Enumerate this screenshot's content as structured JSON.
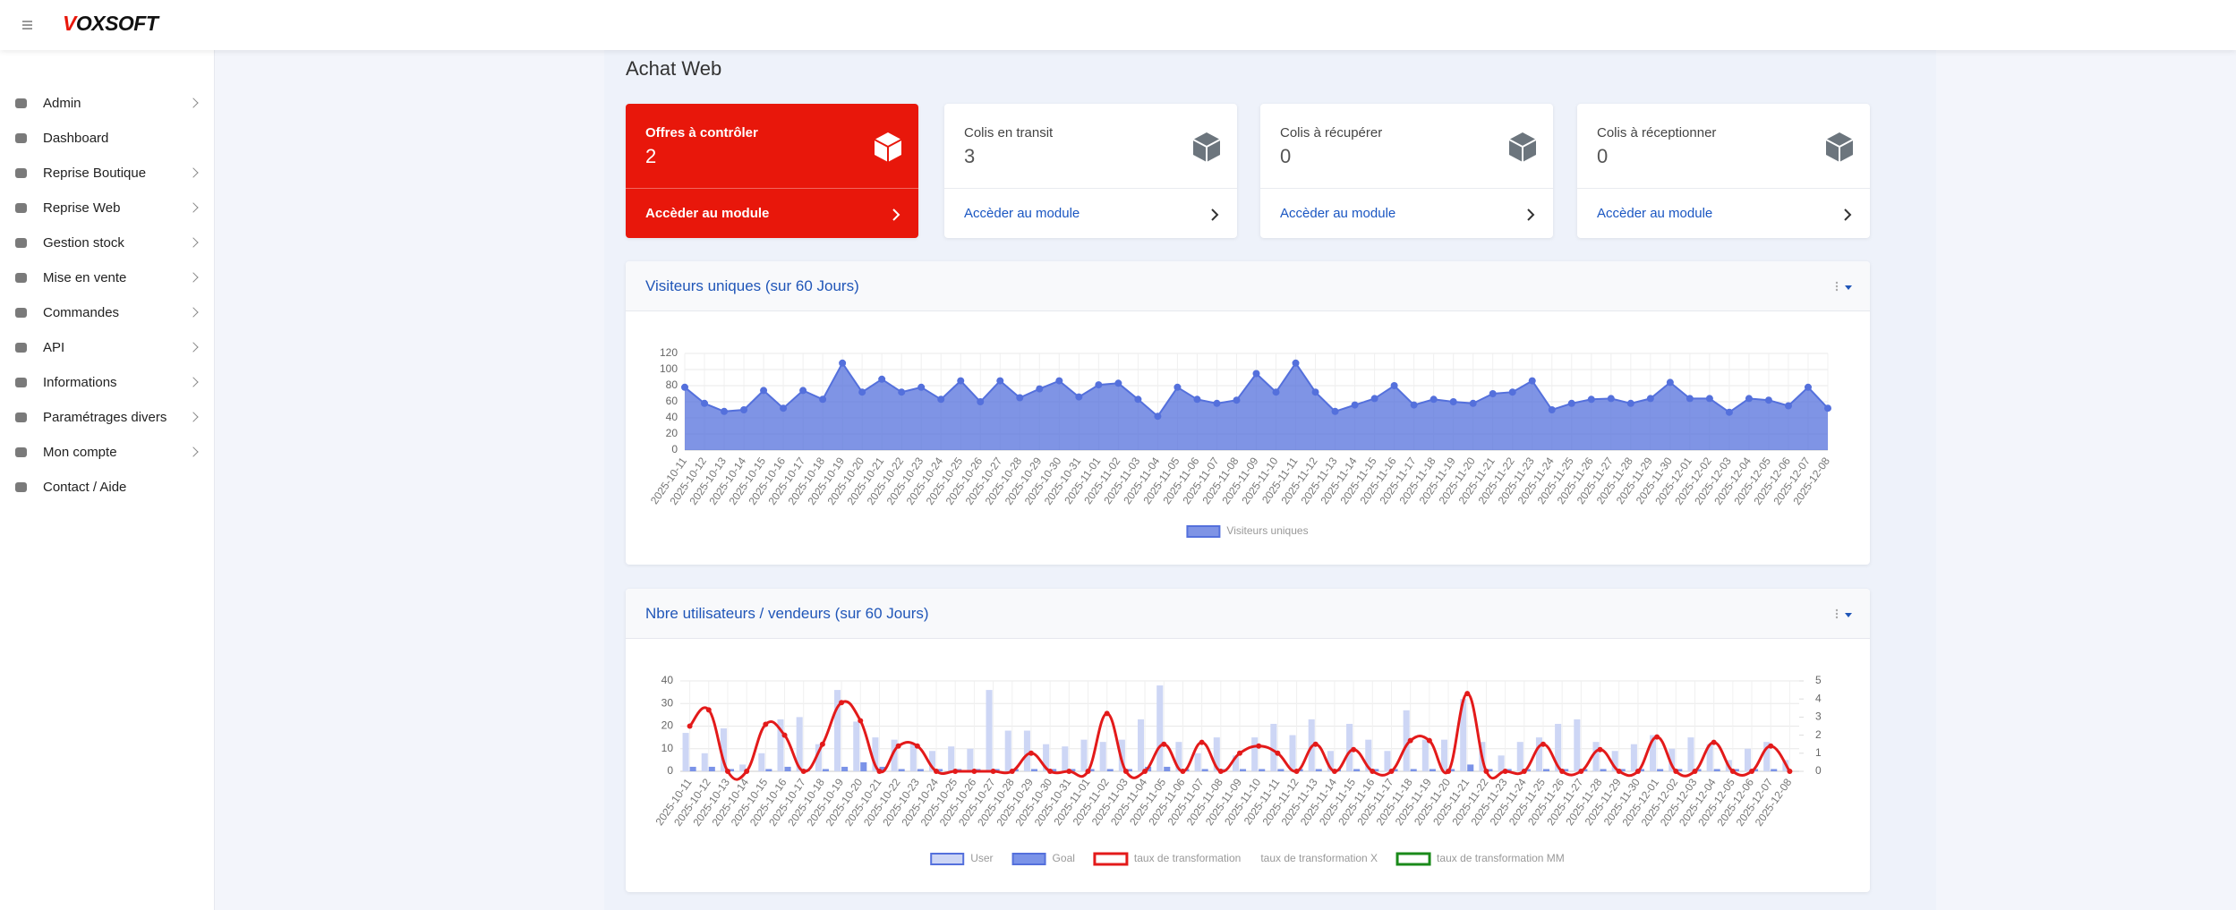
{
  "header": {
    "logo": "VOXSOFT"
  },
  "sidebar": {
    "items": [
      {
        "label": "Admin",
        "submenu": true
      },
      {
        "label": "Dashboard",
        "submenu": false
      },
      {
        "label": "Reprise Boutique",
        "submenu": true
      },
      {
        "label": "Reprise Web",
        "submenu": true
      },
      {
        "label": "Gestion stock",
        "submenu": true
      },
      {
        "label": "Mise en vente",
        "submenu": true
      },
      {
        "label": "Commandes",
        "submenu": true
      },
      {
        "label": "API",
        "submenu": true
      },
      {
        "label": "Informations",
        "submenu": true
      },
      {
        "label": "Paramétrages divers",
        "submenu": true
      },
      {
        "label": "Mon compte",
        "submenu": true
      },
      {
        "label": "Contact / Aide",
        "submenu": false
      }
    ]
  },
  "page_title": "Achat Web",
  "cards": [
    {
      "title": "Offres à contrôler",
      "value": 2,
      "link": "Accèder au module",
      "highlight": true
    },
    {
      "title": "Colis en transit",
      "value": 3,
      "link": "Accèder au module",
      "highlight": false
    },
    {
      "title": "Colis à récupérer",
      "value": 0,
      "link": "Accèder au module",
      "highlight": false
    },
    {
      "title": "Colis à réceptionner",
      "value": 0,
      "link": "Accèder au module",
      "highlight": false
    }
  ],
  "chart_data": [
    {
      "type": "area",
      "title": "Visiteurs uniques (sur 60 Jours)",
      "categories": [
        "2025-10-11",
        "2025-10-12",
        "2025-10-13",
        "2025-10-14",
        "2025-10-15",
        "2025-10-16",
        "2025-10-17",
        "2025-10-18",
        "2025-10-19",
        "2025-10-20",
        "2025-10-21",
        "2025-10-22",
        "2025-10-23",
        "2025-10-24",
        "2025-10-25",
        "2025-10-26",
        "2025-10-27",
        "2025-10-28",
        "2025-10-29",
        "2025-10-30",
        "2025-10-31",
        "2025-11-01",
        "2025-11-02",
        "2025-11-03",
        "2025-11-04",
        "2025-11-05",
        "2025-11-06",
        "2025-11-07",
        "2025-11-08",
        "2025-11-09",
        "2025-11-10",
        "2025-11-11",
        "2025-11-12",
        "2025-11-13",
        "2025-11-14",
        "2025-11-15",
        "2025-11-16",
        "2025-11-17",
        "2025-11-18",
        "2025-11-19",
        "2025-11-20",
        "2025-11-21",
        "2025-11-22",
        "2025-11-23",
        "2025-11-24",
        "2025-11-25",
        "2025-11-26",
        "2025-11-27",
        "2025-11-28",
        "2025-11-29",
        "2025-11-30",
        "2025-12-01",
        "2025-12-02",
        "2025-12-03",
        "2025-12-04",
        "2025-12-05",
        "2025-12-06",
        "2025-12-07",
        "2025-12-08"
      ],
      "series": [
        {
          "name": "Visiteurs uniques",
          "color": "#5470dc",
          "values": [
            78,
            58,
            48,
            50,
            74,
            52,
            74,
            63,
            108,
            72,
            88,
            72,
            78,
            63,
            86,
            60,
            86,
            65,
            76,
            86,
            66,
            81,
            83,
            63,
            42,
            78,
            63,
            58,
            62,
            95,
            72,
            108,
            72,
            48,
            56,
            64,
            80,
            56,
            63,
            60,
            58,
            70,
            72,
            86,
            50,
            58,
            63,
            64,
            58,
            64,
            84,
            64,
            64,
            47,
            64,
            62,
            55,
            78,
            52
          ]
        }
      ],
      "ylim": [
        0,
        120
      ],
      "yticks": [
        0,
        20,
        40,
        60,
        80,
        100,
        120
      ],
      "grid": true
    },
    {
      "type": "bar",
      "title": "Nbre utilisateurs / vendeurs (sur 60 Jours)",
      "categories": [
        "2025-10-11",
        "2025-10-12",
        "2025-10-13",
        "2025-10-14",
        "2025-10-15",
        "2025-10-16",
        "2025-10-17",
        "2025-10-18",
        "2025-10-19",
        "2025-10-20",
        "2025-10-21",
        "2025-10-22",
        "2025-10-23",
        "2025-10-24",
        "2025-10-25",
        "2025-10-26",
        "2025-10-27",
        "2025-10-28",
        "2025-10-29",
        "2025-10-30",
        "2025-10-31",
        "2025-11-01",
        "2025-11-02",
        "2025-11-03",
        "2025-11-04",
        "2025-11-05",
        "2025-11-06",
        "2025-11-07",
        "2025-11-08",
        "2025-11-09",
        "2025-11-10",
        "2025-11-11",
        "2025-11-12",
        "2025-11-13",
        "2025-11-14",
        "2025-11-15",
        "2025-11-16",
        "2025-11-17",
        "2025-11-18",
        "2025-11-19",
        "2025-11-20",
        "2025-11-21",
        "2025-11-22",
        "2025-11-23",
        "2025-11-24",
        "2025-11-25",
        "2025-11-26",
        "2025-11-27",
        "2025-11-28",
        "2025-11-29",
        "2025-11-30",
        "2025-12-01",
        "2025-12-02",
        "2025-12-03",
        "2025-12-04",
        "2025-12-05",
        "2025-12-06",
        "2025-12-07",
        "2025-12-08"
      ],
      "series": [
        {
          "name": "User",
          "type": "bar",
          "color": "#cdd6f5",
          "values": [
            17,
            8,
            19,
            3,
            8,
            23,
            24,
            12,
            36,
            22,
            15,
            14,
            12,
            9,
            11,
            10,
            36,
            18,
            18,
            12,
            11,
            14,
            13,
            14,
            23,
            38,
            13,
            8,
            15,
            7,
            15,
            21,
            16,
            23,
            9,
            21,
            14,
            9,
            27,
            14,
            14,
            32,
            13,
            7,
            13,
            15,
            21,
            23,
            13,
            9,
            12,
            16,
            10,
            15,
            12,
            5,
            10,
            13,
            5
          ]
        },
        {
          "name": "Goal",
          "type": "bar",
          "color": "#7b93e8",
          "values": [
            2,
            2,
            1,
            0,
            1,
            2,
            1,
            1,
            2,
            4,
            2,
            1,
            1,
            1,
            1,
            1,
            1,
            1,
            1,
            1,
            1,
            1,
            1,
            1,
            2,
            2,
            1,
            1,
            1,
            1,
            1,
            1,
            1,
            1,
            1,
            1,
            1,
            1,
            1,
            1,
            1,
            3,
            1,
            1,
            1,
            1,
            1,
            1,
            1,
            1,
            1,
            1,
            1,
            1,
            1,
            1,
            1,
            1,
            0
          ]
        },
        {
          "name": "taux de transformation",
          "type": "line",
          "axis": "y2",
          "color": "#e31a1a",
          "values": [
            2.5,
            3.4,
            0,
            0,
            2.6,
            2,
            0,
            1.5,
            3.8,
            2.8,
            0,
            1.4,
            1.4,
            0,
            0,
            0,
            0,
            0,
            1,
            0,
            0,
            0,
            3.2,
            0,
            0,
            1.5,
            0,
            1.6,
            0,
            1,
            1.4,
            1.0,
            0,
            1.5,
            0,
            1.2,
            0,
            0,
            1.7,
            1.7,
            0,
            4.3,
            0,
            0,
            0,
            1.5,
            0,
            0,
            1.2,
            0,
            0,
            1.9,
            0,
            0,
            1.6,
            0,
            0,
            1.4,
            0
          ]
        },
        {
          "name": "taux de transformation X",
          "type": "line",
          "axis": "y2"
        },
        {
          "name": "taux de transformation MM",
          "type": "line",
          "axis": "y2",
          "color": "#1a8a1a"
        }
      ],
      "ylim": [
        0,
        40
      ],
      "yticks": [
        0,
        10,
        20,
        30,
        40
      ],
      "y2lim": [
        0,
        5
      ],
      "y2ticks": [
        0,
        1,
        2,
        3,
        4,
        5
      ],
      "grid": true
    }
  ]
}
